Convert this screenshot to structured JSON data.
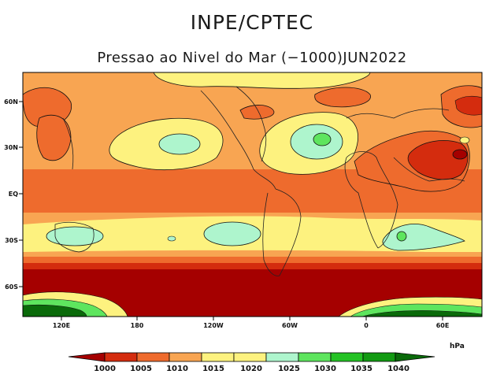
{
  "header": {
    "title": "INPE/CPTEC",
    "subtitle": "Pressao ao Nivel do Mar (−1000)JUN2022"
  },
  "map": {
    "lat_labels": [
      "60N",
      "30N",
      "EQ",
      "30S",
      "60S"
    ],
    "lon_labels": [
      "120E",
      "180",
      "120W",
      "60W",
      "0",
      "60E"
    ]
  },
  "colorbar": {
    "units": "hPa",
    "levels": [
      "1000",
      "1005",
      "1010",
      "1015",
      "1020",
      "1025",
      "1030",
      "1035",
      "1040"
    ],
    "colors": {
      "lt1000": "#a50000",
      "1000_1005": "#d42c0e",
      "1005_1010": "#ee6b2d",
      "1010_1015": "#f8a552",
      "1015_1020": "#fdf27f",
      "1020_1025": "#aef5cd",
      "1025_1030": "#5ee55e",
      "1030_1035": "#24c224",
      "1035_1040": "#129a12",
      "gt1040": "#0a6a0a"
    }
  }
}
